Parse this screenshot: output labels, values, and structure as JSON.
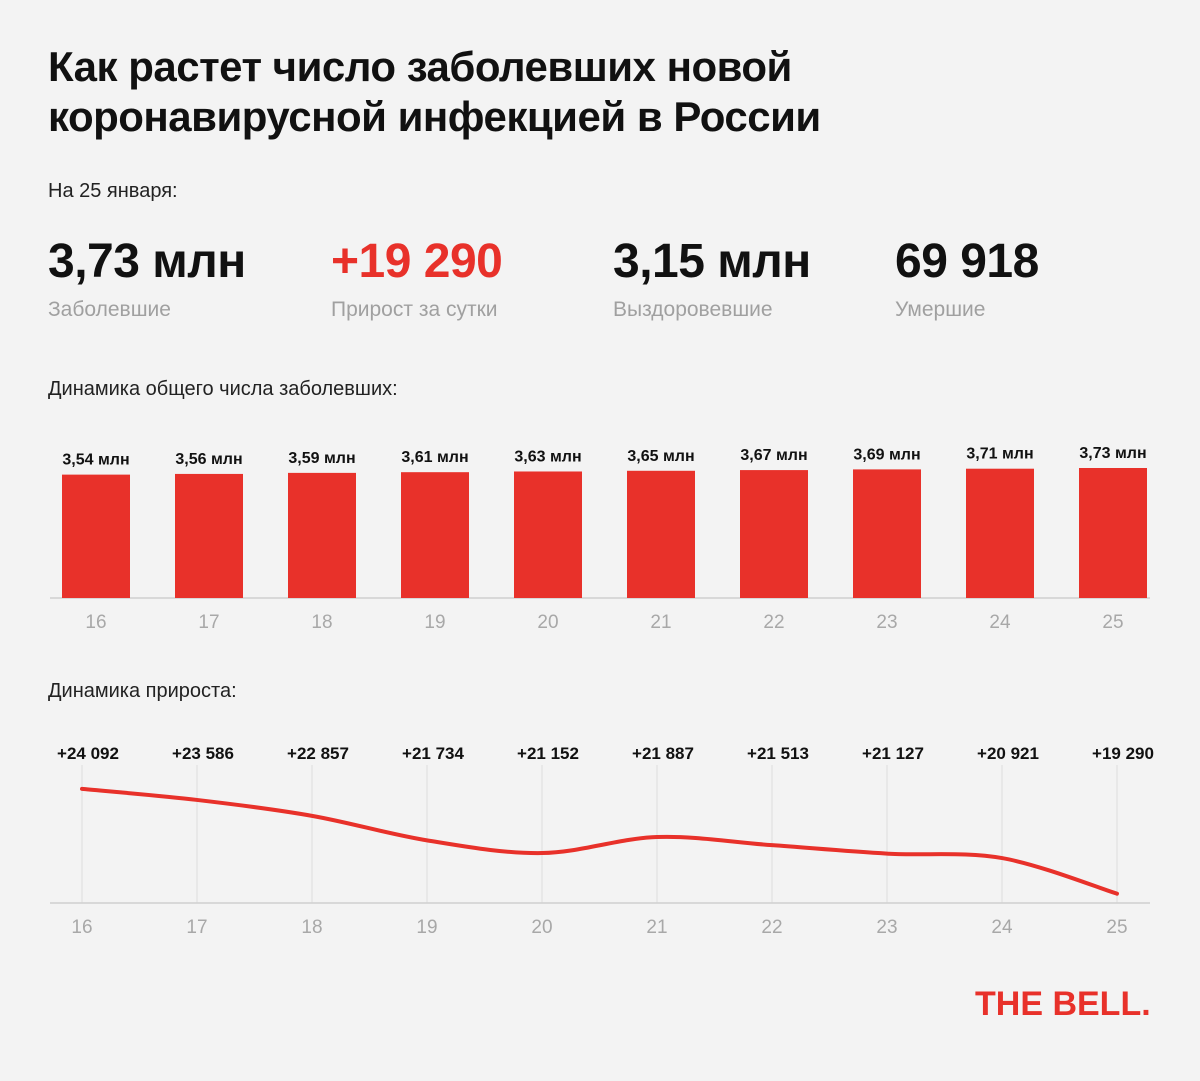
{
  "title": "Как растет число заболевших новой коронавирусной инфекцией в России",
  "date_label": "На 25 января:",
  "stats": [
    {
      "value": "3,73 млн",
      "label": "Заболевшие"
    },
    {
      "value": "+19 290",
      "label": "Прирост за сутки"
    },
    {
      "value": "3,15 млн",
      "label": "Выздоровевшие"
    },
    {
      "value": "69 918",
      "label": "Умершие"
    }
  ],
  "colors": {
    "accent": "#e8312a",
    "axis_text": "#a8a8a8",
    "grid": "#dedede"
  },
  "brand": "THE BELL.",
  "chart_data": [
    {
      "type": "bar",
      "title": "Динамика общего числа заболевших:",
      "categories": [
        "16",
        "17",
        "18",
        "19",
        "20",
        "21",
        "22",
        "23",
        "24",
        "25"
      ],
      "values": [
        3.54,
        3.56,
        3.59,
        3.61,
        3.63,
        3.65,
        3.67,
        3.69,
        3.71,
        3.73
      ],
      "value_labels": [
        "3,54 млн",
        "3,56 млн",
        "3,59 млн",
        "3,61 млн",
        "3,63 млн",
        "3,65 млн",
        "3,67 млн",
        "3,69 млн",
        "3,71 млн",
        "3,73 млн"
      ],
      "grid": false
    },
    {
      "type": "line",
      "title": "Динамика прироста:",
      "x": [
        "16",
        "17",
        "18",
        "19",
        "20",
        "21",
        "22",
        "23",
        "24",
        "25"
      ],
      "values": [
        24092,
        23586,
        22857,
        21734,
        21152,
        21887,
        21513,
        21127,
        20921,
        19290
      ],
      "value_labels": [
        "+24 092",
        "+23 586",
        "+22 857",
        "+21 734",
        "+21 152",
        "+21 887",
        "+21 513",
        "+21 127",
        "+20 921",
        "+19 290"
      ],
      "grid": true
    }
  ]
}
